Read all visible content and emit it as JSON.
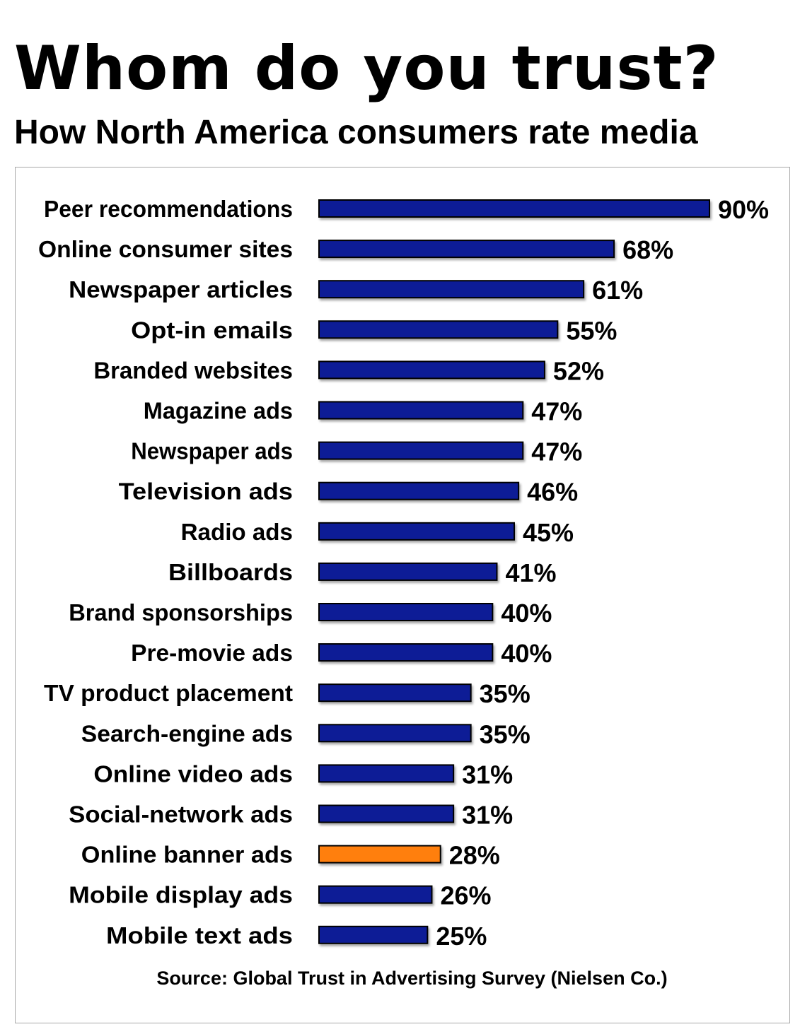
{
  "colors": {
    "bar": "#0f1f96",
    "highlight": "#ff7f0a",
    "bar_outline": "#000000",
    "frame": "#a8a8a8",
    "text": "#000000"
  },
  "chart_data": {
    "type": "bar",
    "orientation": "horizontal",
    "title": "Whom do you trust?",
    "subtitle": "How North America consumers rate media",
    "source": "Source: Global Trust in Advertising Survey (Nielsen Co.)",
    "value_suffix": "%",
    "xlim": [
      0,
      90
    ],
    "highlight_category": "Online banner ads",
    "categories": [
      "Peer recommendations",
      "Online consumer sites",
      "Newspaper articles",
      "Opt-in emails",
      "Branded websites",
      "Magazine ads",
      "Newspaper ads",
      "Television ads",
      "Radio ads",
      "Billboards",
      "Brand sponsorships",
      "Pre-movie ads",
      "TV product placement",
      "Search-engine ads",
      "Online video ads",
      "Social-network ads",
      "Online banner ads",
      "Mobile display ads",
      "Mobile text ads"
    ],
    "values": [
      90,
      68,
      61,
      55,
      52,
      47,
      47,
      46,
      45,
      41,
      40,
      40,
      35,
      35,
      31,
      31,
      28,
      26,
      25
    ]
  }
}
